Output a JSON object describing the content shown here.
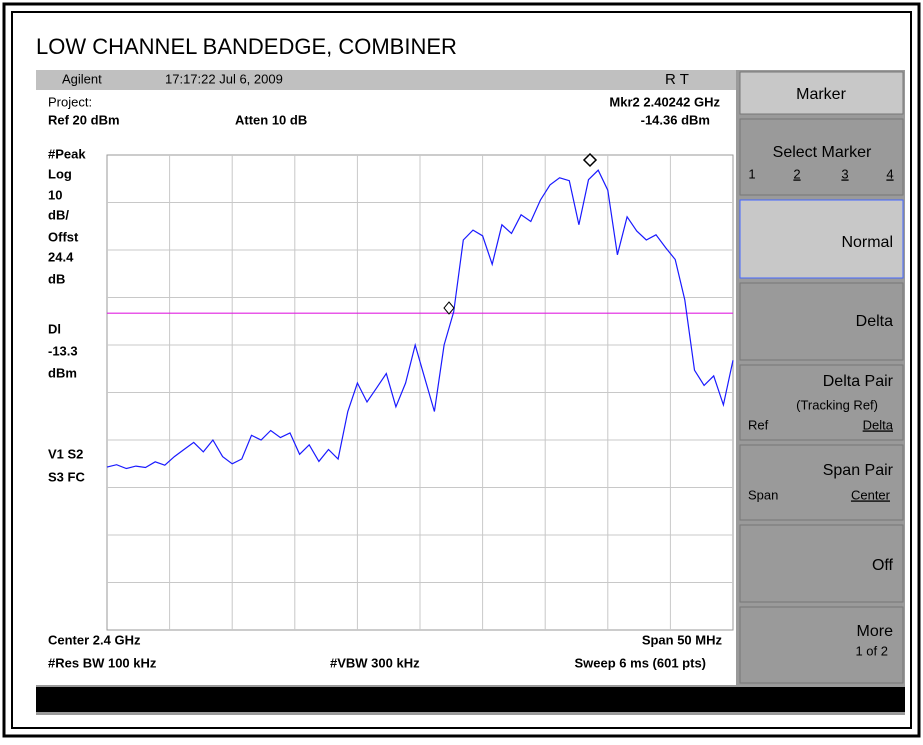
{
  "page_title": "LOW CHANNEL BANDEDGE, COMBINER",
  "header": {
    "brand": "Agilent",
    "timestamp": "17:17:22  Jul 6, 2009",
    "flags": "R   T"
  },
  "info": {
    "project": "Project:",
    "ref": "Ref 20 dBm",
    "atten": "Atten 10 dB",
    "marker_freq": "Mkr2  2.40242 GHz",
    "marker_level": "-14.36 dBm"
  },
  "left_labels": [
    "#Peak",
    "Log",
    "10",
    "dB/",
    "Offst",
    "24.4",
    "dB",
    "Dl"
  ],
  "display_line": -13.3,
  "display_unit": "dBm",
  "status": [
    "V1  S2",
    "S3  FC"
  ],
  "footer": {
    "center": "Center 2.4 GHz",
    "span": "Span 50 MHz",
    "rbw": "#Res BW 100 kHz",
    "vbw": "#VBW 300 kHz",
    "sweep": "Sweep 6 ms (601 pts)"
  },
  "softkeys": {
    "title": "Marker",
    "select": "Select Marker",
    "select_options": [
      "1",
      "2",
      "3",
      "4"
    ],
    "normal": "Normal",
    "delta": "Delta",
    "delta_pair": "Delta Pair",
    "tracking": "(Tracking Ref)",
    "ref": "Ref",
    "delta_sub": "Delta",
    "span_pair": "Span Pair",
    "span": "Span",
    "center": "Center",
    "off": "Off",
    "more": "More",
    "page": "1 of 2"
  },
  "trace": {
    "ylim": [
      -80,
      20
    ],
    "values": [
      -45.7,
      -45.2,
      -46,
      -45.5,
      -45.8,
      -44.6,
      -45.3,
      -43.5,
      -42,
      -40.5,
      -42.5,
      -40,
      -43.5,
      -45,
      -44,
      -39,
      -40,
      -38,
      -39.5,
      -38.5,
      -43,
      -41,
      -44.5,
      -42,
      -44,
      -34,
      -28,
      -32,
      -29,
      -26,
      -33,
      -28,
      -20,
      -27,
      -34,
      -20,
      -13,
      2.1,
      4.2,
      3,
      -3,
      5.3,
      3.5,
      7.4,
      6,
      10.5,
      13.7,
      15.2,
      14.6,
      5.3,
      14.8,
      16.8,
      12.6,
      -1,
      7,
      4,
      2.1,
      3.2,
      0.5,
      -2,
      -10.5,
      -25.3,
      -28.5,
      -26.5,
      -32.6,
      -23.2
    ]
  }
}
